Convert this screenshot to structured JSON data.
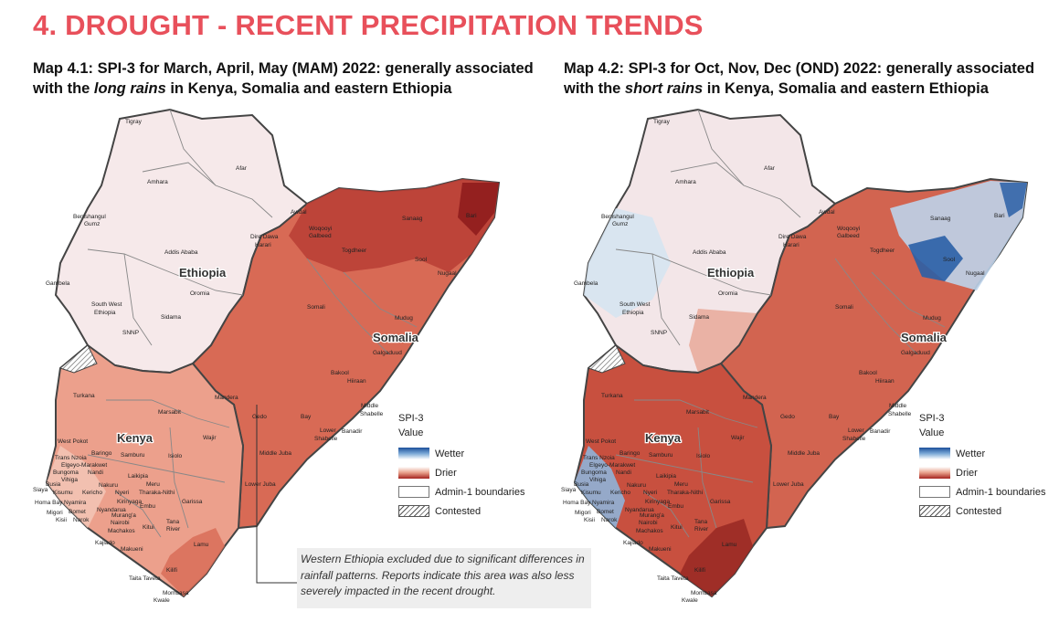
{
  "page_title": "4. DROUGHT - RECENT PRECIPITATION TRENDS",
  "map1": {
    "title_pre": "Map 4.1: SPI-3 for March, April, May (MAM) 2022: generally associated with the ",
    "title_em": "long rains",
    "title_post": " in Kenya, Somalia and eastern Ethiopia"
  },
  "map2": {
    "title_pre": "Map 4.2: SPI-3 for Oct, Nov, Dec (OND) 2022: generally associated with the ",
    "title_em": "short rains",
    "title_post": " in Kenya, Somalia and eastern Ethiopia"
  },
  "countries": {
    "ethiopia": "Ethiopia",
    "somalia": "Somalia",
    "kenya": "Kenya"
  },
  "regions": {
    "tigray": "Tigray",
    "afar": "Afar",
    "amhara": "Amhara",
    "benishangul": "Benishangul",
    "gumz": "Gumz",
    "addis": "Addis Ababa",
    "dire_dawa": "Dire Dawa",
    "harari": "Harari",
    "gambela": "Gambela",
    "oromia": "Oromia",
    "swe1": "South West",
    "swe2": "Ethiopia",
    "sidama": "Sidama",
    "snnp": "SNNP",
    "somali": "Somali",
    "awdal": "Awdal",
    "woqooyi": "Woqooyi",
    "galbeed": "Galbeed",
    "sanaag": "Sanaag",
    "bari": "Bari",
    "togdheer": "Togdheer",
    "sool": "Sool",
    "nugaal": "Nugaal",
    "mudug": "Mudug",
    "galgaduud": "Galgaduud",
    "bakool": "Bakool",
    "hiiraan": "Hiiraan",
    "middle": "Middle",
    "shabelle": "Shabelle",
    "gedo": "Gedo",
    "bay": "Bay",
    "lower": "Lower",
    "lower_shabelle": "Shabelle",
    "banadir": "Banadir",
    "middle_juba": "Middle Juba",
    "lower_juba": "Lower Juba",
    "turkana": "Turkana",
    "marsabit": "Marsabit",
    "mandera": "Mandera",
    "west_pokot": "West Pokot",
    "trans_nzoia": "Trans Nzoia",
    "baringo": "Baringo",
    "elgeyo": "Elgeyo-Marakwet",
    "samburu": "Samburu",
    "isiolo": "Isiolo",
    "wajir": "Wajir",
    "bungoma": "Bungoma",
    "nandi": "Nandi",
    "vihiga": "Vihiga",
    "nakuru": "Nakuru",
    "laikipia": "Laikipia",
    "meru": "Meru",
    "busia": "Busia",
    "siaya": "Siaya",
    "kisumu": "Kisumu",
    "kericho": "Kericho",
    "nyeri": "Nyeri",
    "tharaka": "Tharaka-Nithi",
    "homa_bay": "Homa Bay",
    "nyamira": "Nyamira",
    "kirinyaga": "Kirinyaga",
    "nyandarua": "Nyandarua",
    "embu": "Embu",
    "migori": "Migori",
    "bomet": "Bomet",
    "muranga": "Murang'a",
    "kisii": "Kisii",
    "narok": "Narok",
    "nairobi": "Nairobi",
    "garissa": "Garissa",
    "machakos": "Machakos",
    "kitui": "Kitui",
    "tana": "Tana",
    "river": "River",
    "kajiado": "Kajiado",
    "makueni": "Makueni",
    "lamu": "Lamu",
    "taita": "Taita Taveta",
    "kilifi": "Kilifi",
    "mombasa": "Mombasa",
    "kwale": "Kwale"
  },
  "legend": {
    "title": "SPI-3",
    "subtitle": "Value",
    "wetter": "Wetter",
    "drier": "Drier",
    "admin": "Admin-1 boundaries",
    "contested": "Contested",
    "colors": {
      "wetter": "#1c4f9a",
      "neutral": "#ffffff",
      "drier": "#a52320"
    }
  },
  "note": "Western Ethiopia excluded due to significant differences in rainfall patterns. Reports indicate this area was also less severely impacted in the recent drought.",
  "accent_color": "#e8505b"
}
